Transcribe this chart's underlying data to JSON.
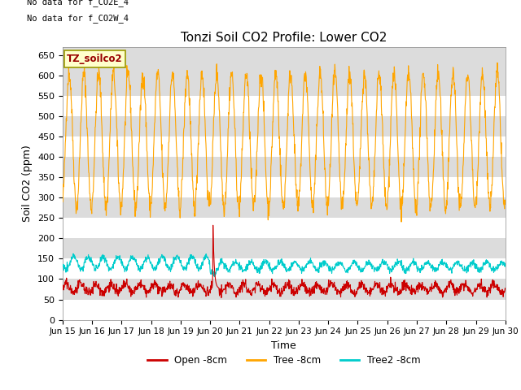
{
  "title": "Tonzi Soil CO2 Profile: Lower CO2",
  "xlabel": "Time",
  "ylabel": "Soil CO2 (ppm)",
  "top_left_text_line1": "No data for f_CO2E_4",
  "top_left_text_line2": "No data for f_CO2W_4",
  "legend_box_label": "TZ_soilco2",
  "ylim": [
    0,
    670
  ],
  "yticks": [
    0,
    50,
    100,
    150,
    200,
    250,
    300,
    350,
    400,
    450,
    500,
    550,
    600,
    650
  ],
  "xtick_labels": [
    "Jun 15",
    "Jun 16",
    "Jun 17",
    "Jun 18",
    "Jun 19",
    "Jun 20",
    "Jun 21",
    "Jun 22",
    "Jun 23",
    "Jun 24",
    "Jun 25",
    "Jun 26",
    "Jun 27",
    "Jun 28",
    "Jun 29",
    "Jun 30"
  ],
  "colors": {
    "open": "#CC0000",
    "tree": "#FFA500",
    "tree2": "#00CCCC",
    "bg_band": "#DCDCDC",
    "legend_box_bg": "#FFFFCC",
    "legend_box_border": "#999900"
  },
  "legend_labels": [
    "Open -8cm",
    "Tree -8cm",
    "Tree2 -8cm"
  ],
  "num_days": 15,
  "seed": 42
}
